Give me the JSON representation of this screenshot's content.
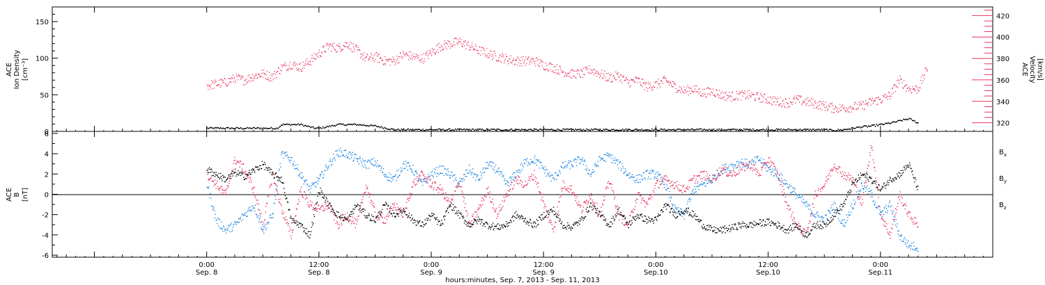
{
  "colors": {
    "black": "#000000",
    "red": "#e8305e",
    "blue": "#1f86e0"
  },
  "chart_data": [
    {
      "type": "scatter",
      "panel": "top",
      "ylabel_lines": [
        "ACE",
        "Ion Density",
        "[cm⁻³]"
      ],
      "ylabel_right_lines": [
        "ACE",
        "Velocity",
        "[km/s]"
      ],
      "ylim": [
        0,
        170
      ],
      "y_ticks": [
        0,
        50,
        100,
        150
      ],
      "y_tick_labels": [
        "0",
        "50",
        "100",
        "150"
      ],
      "y2lim": [
        312,
        428
      ],
      "y2_ticks": [
        320,
        340,
        360,
        380,
        400,
        420
      ],
      "y2_tick_labels": [
        "320",
        "340",
        "360",
        "380",
        "400",
        "420"
      ],
      "grid": false,
      "series": [
        {
          "axis": "left",
          "color": "black",
          "x": [
            0,
            2,
            4,
            6,
            7.5,
            8,
            10,
            11.5,
            12,
            14,
            16,
            18,
            20,
            22,
            24,
            26,
            28,
            30,
            32,
            34,
            36,
            38,
            40,
            42,
            44,
            46,
            48,
            50,
            52,
            54,
            56,
            58,
            60,
            62,
            64,
            65,
            66,
            67,
            68,
            69,
            70,
            71,
            72,
            73,
            74,
            75,
            76
          ],
          "y": [
            5,
            5,
            5,
            5,
            5,
            10,
            10,
            5,
            5,
            10,
            10,
            8,
            3,
            3,
            3,
            3,
            3,
            3,
            3,
            3,
            3,
            3,
            3,
            3,
            3,
            3,
            3,
            3,
            3,
            3,
            3,
            3,
            3,
            3,
            3,
            3,
            3,
            2,
            3,
            5,
            7,
            8,
            10,
            12,
            15,
            18,
            12
          ]
        },
        {
          "axis": "right",
          "color": "red",
          "x": [
            0,
            2,
            3,
            4,
            5,
            6,
            7,
            8,
            9,
            10,
            11,
            12,
            13,
            14,
            15,
            16,
            17,
            18,
            19,
            20,
            21,
            22,
            23,
            24,
            25,
            26,
            27,
            28,
            29,
            30,
            31,
            32,
            33,
            34,
            35,
            36,
            37,
            38,
            39,
            40,
            41,
            42,
            43,
            44,
            45,
            46,
            47,
            48,
            49,
            50,
            51,
            52,
            53,
            54,
            55,
            56,
            57,
            58,
            59,
            60,
            61,
            62,
            63,
            64,
            65,
            66,
            67,
            68,
            69,
            70,
            71,
            72,
            73,
            74,
            75,
            76,
            77
          ],
          "y": [
            355,
            358,
            362,
            360,
            364,
            366,
            363,
            372,
            375,
            372,
            378,
            385,
            392,
            390,
            394,
            388,
            380,
            382,
            378,
            378,
            384,
            382,
            380,
            386,
            392,
            394,
            396,
            392,
            388,
            385,
            382,
            380,
            378,
            378,
            378,
            374,
            372,
            368,
            366,
            366,
            370,
            366,
            362,
            364,
            358,
            360,
            354,
            356,
            360,
            354,
            350,
            352,
            348,
            350,
            346,
            345,
            346,
            346,
            344,
            342,
            340,
            339,
            342,
            340,
            338,
            336,
            334,
            334,
            335,
            336,
            340,
            342,
            346,
            360,
            352,
            352,
            372
          ]
        }
      ]
    },
    {
      "type": "scatter",
      "panel": "bottom",
      "ylabel_lines": [
        "ACE",
        "B",
        "[nT]"
      ],
      "ylim": [
        -6.2,
        6.2
      ],
      "y_ticks": [
        -6,
        -4,
        -2,
        0,
        2,
        4,
        6
      ],
      "y_tick_labels": [
        "-6",
        "-4",
        "-2",
        "0",
        "2",
        "4",
        "6"
      ],
      "zero_line": true,
      "legend_position": "right",
      "legend": [
        {
          "name": "B",
          "sub": "x",
          "color": "black"
        },
        {
          "name": "B",
          "sub": "y",
          "color": "blue"
        },
        {
          "name": "B",
          "sub": "z",
          "color": "red"
        }
      ],
      "series": [
        {
          "name": "Bx",
          "color": "black",
          "x": [
            0,
            1,
            2,
            3,
            4,
            5,
            6,
            7,
            8,
            9,
            10,
            11,
            12,
            13,
            14,
            15,
            16,
            17,
            18,
            19,
            20,
            21,
            22,
            23,
            24,
            25,
            26,
            27,
            28,
            29,
            30,
            31,
            32,
            33,
            34,
            35,
            36,
            37,
            38,
            39,
            40,
            41,
            42,
            43,
            44,
            45,
            46,
            47,
            48,
            49,
            50,
            51,
            52,
            53,
            54,
            55,
            56,
            57,
            58,
            59,
            60,
            61,
            62,
            63,
            64,
            65,
            66,
            67,
            68,
            69,
            70,
            71,
            72,
            73,
            74,
            75,
            76
          ],
          "y": [
            2.5,
            2.0,
            1.5,
            2.2,
            1.8,
            2.4,
            3.0,
            2.0,
            1.5,
            -2.5,
            -3.0,
            -4.0,
            0.5,
            -1.0,
            -2.0,
            -2.5,
            -1.0,
            -2.0,
            -2.5,
            -1.0,
            -2.0,
            -1.5,
            -2.5,
            -3.0,
            -2.0,
            -3.0,
            -1.0,
            -2.0,
            -3.0,
            -2.5,
            -3.0,
            -3.2,
            -3.0,
            -2.0,
            -2.5,
            -3.0,
            -2.0,
            -1.5,
            -3.0,
            -3.2,
            -2.5,
            -1.0,
            -2.0,
            -3.0,
            -1.5,
            -3.0,
            -2.0,
            -2.5,
            -2.5,
            -1.0,
            -2.0,
            -1.5,
            -2.0,
            -3.0,
            -3.5,
            -3.5,
            -3.3,
            -3.0,
            -3.0,
            -2.8,
            -2.7,
            -3.0,
            -3.5,
            -3.0,
            -4.0,
            -3.0,
            -3.0,
            -2.0,
            -1.0,
            1.0,
            2.0,
            1.5,
            0.5,
            1.5,
            2.0,
            3.0,
            0.5
          ]
        },
        {
          "name": "By",
          "color": "blue",
          "x": [
            0,
            1,
            2,
            3,
            4,
            5,
            6,
            7,
            8,
            9,
            10,
            11,
            12,
            13,
            14,
            15,
            16,
            17,
            18,
            19,
            20,
            21,
            22,
            23,
            24,
            25,
            26,
            27,
            28,
            29,
            30,
            31,
            32,
            33,
            34,
            35,
            36,
            37,
            38,
            39,
            40,
            41,
            42,
            43,
            44,
            45,
            46,
            47,
            48,
            49,
            50,
            51,
            52,
            53,
            54,
            55,
            56,
            57,
            58,
            59,
            60,
            61,
            62,
            63,
            64,
            65,
            66,
            67,
            68,
            69,
            70,
            71,
            72,
            73,
            74,
            75,
            76
          ],
          "y": [
            1.0,
            -2.5,
            -3.5,
            -3.0,
            -2.0,
            -1.0,
            -3.5,
            -2.0,
            4.0,
            3.5,
            2.0,
            0.5,
            1.5,
            3.0,
            4.2,
            4.0,
            3.5,
            3.0,
            3.2,
            2.0,
            1.5,
            3.0,
            2.5,
            1.0,
            2.0,
            2.5,
            2.0,
            1.0,
            2.5,
            1.5,
            3.0,
            2.5,
            1.0,
            2.0,
            3.2,
            3.5,
            2.5,
            1.5,
            2.8,
            3.0,
            3.5,
            2.0,
            3.5,
            3.8,
            3.0,
            2.0,
            1.5,
            2.0,
            2.0,
            1.0,
            -1.5,
            -2.0,
            0.5,
            1.0,
            1.5,
            2.5,
            2.8,
            3.2,
            3.0,
            3.5,
            2.5,
            2.0,
            1.0,
            0.0,
            -1.0,
            -2.0,
            -2.5,
            -1.0,
            -3.0,
            -1.0,
            1.0,
            0.0,
            -2.0,
            -1.0,
            -4.0,
            -5.0,
            -5.2
          ]
        },
        {
          "name": "Bz",
          "color": "red",
          "x": [
            0,
            1,
            2,
            3,
            4,
            5,
            6,
            7,
            8,
            9,
            10,
            11,
            12,
            13,
            14,
            15,
            16,
            17,
            18,
            19,
            20,
            21,
            22,
            23,
            24,
            25,
            26,
            27,
            28,
            29,
            30,
            31,
            32,
            33,
            34,
            35,
            36,
            37,
            38,
            39,
            40,
            41,
            42,
            43,
            44,
            45,
            46,
            47,
            48,
            49,
            50,
            51,
            52,
            53,
            54,
            55,
            56,
            57,
            58,
            59,
            60,
            61,
            62,
            63,
            64,
            65,
            66,
            67,
            68,
            69,
            70,
            71,
            72,
            73,
            74,
            75,
            76
          ],
          "y": [
            2.0,
            1.0,
            0.0,
            3.5,
            2.5,
            0.5,
            -3.0,
            2.0,
            -1.5,
            -4.0,
            0.5,
            -1.0,
            -1.5,
            -1.0,
            -3.0,
            -2.0,
            -3.0,
            1.0,
            -2.0,
            -2.5,
            -1.0,
            -2.0,
            1.0,
            2.0,
            1.0,
            0.5,
            -1.0,
            1.5,
            -3.0,
            -1.5,
            0.5,
            -2.0,
            0.0,
            1.5,
            1.0,
            2.0,
            -1.0,
            -3.5,
            1.0,
            0.5,
            -1.5,
            0.0,
            -2.0,
            1.5,
            -2.0,
            -3.0,
            0.0,
            -1.0,
            1.0,
            1.5,
            1.0,
            0.5,
            1.5,
            2.0,
            1.5,
            2.5,
            2.0,
            2.5,
            3.0,
            2.0,
            3.5,
            2.0,
            -1.0,
            -3.0,
            -4.0,
            0.0,
            1.0,
            3.0,
            2.0,
            1.5,
            -1.0,
            5.0,
            -2.0,
            -4.0,
            0.0,
            -2.0,
            -3.0
          ]
        }
      ]
    }
  ],
  "x_axis": {
    "ticks": [
      -12,
      0,
      12,
      24,
      36,
      48,
      60,
      72,
      84
    ],
    "tick_labels": [
      {
        "time": "0:00",
        "date": "Sep. 8"
      },
      {
        "time": "12:00",
        "date": "Sep. 8"
      },
      {
        "time": "0:00",
        "date": "Sep. 9"
      },
      {
        "time": "12:00",
        "date": "Sep. 9"
      },
      {
        "time": "0:00",
        "date": "Sep.10"
      },
      {
        "time": "12:00",
        "date": "Sep.10"
      },
      {
        "time": "0:00",
        "date": "Sep.11"
      }
    ],
    "label": "hours:minutes, Sep. 7, 2013 - Sep. 11, 2013"
  }
}
